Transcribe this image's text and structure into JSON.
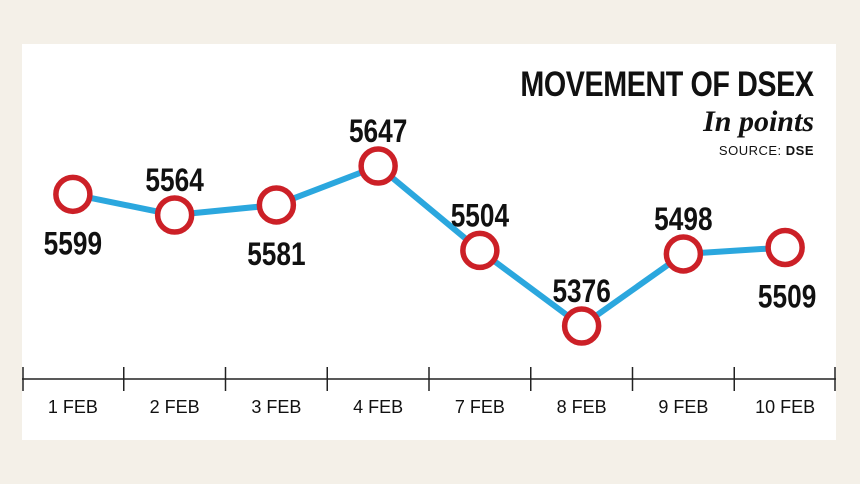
{
  "title": {
    "main": "MOVEMENT OF DSEX",
    "subtitle": "In points",
    "source_label": "SOURCE:",
    "source_value": "DSE"
  },
  "chart_data": {
    "type": "line",
    "title": "MOVEMENT OF DSEX",
    "subtitle": "In points",
    "source": "DSE",
    "categories": [
      "1 FEB",
      "2 FEB",
      "3 FEB",
      "4 FEB",
      "7 FEB",
      "8 FEB",
      "9 FEB",
      "10 FEB"
    ],
    "series": [
      {
        "values": [
          5599,
          5564,
          5581,
          5647,
          5504,
          5376,
          5498,
          5509
        ]
      }
    ],
    "data_labels": [
      "5599",
      "5564",
      "5581",
      "5647",
      "5504",
      "5376",
      "5498",
      "5509"
    ],
    "label_positions": [
      "below",
      "above",
      "below",
      "above",
      "above",
      "above",
      "above",
      "below"
    ],
    "ylim": [
      5350,
      5690
    ],
    "grid": false,
    "legend": "none",
    "colors": {
      "line": "#2ba7de",
      "marker_stroke": "#cc2027",
      "marker_fill": "#ffffff",
      "text": "#111111",
      "axis": "#222222"
    }
  }
}
